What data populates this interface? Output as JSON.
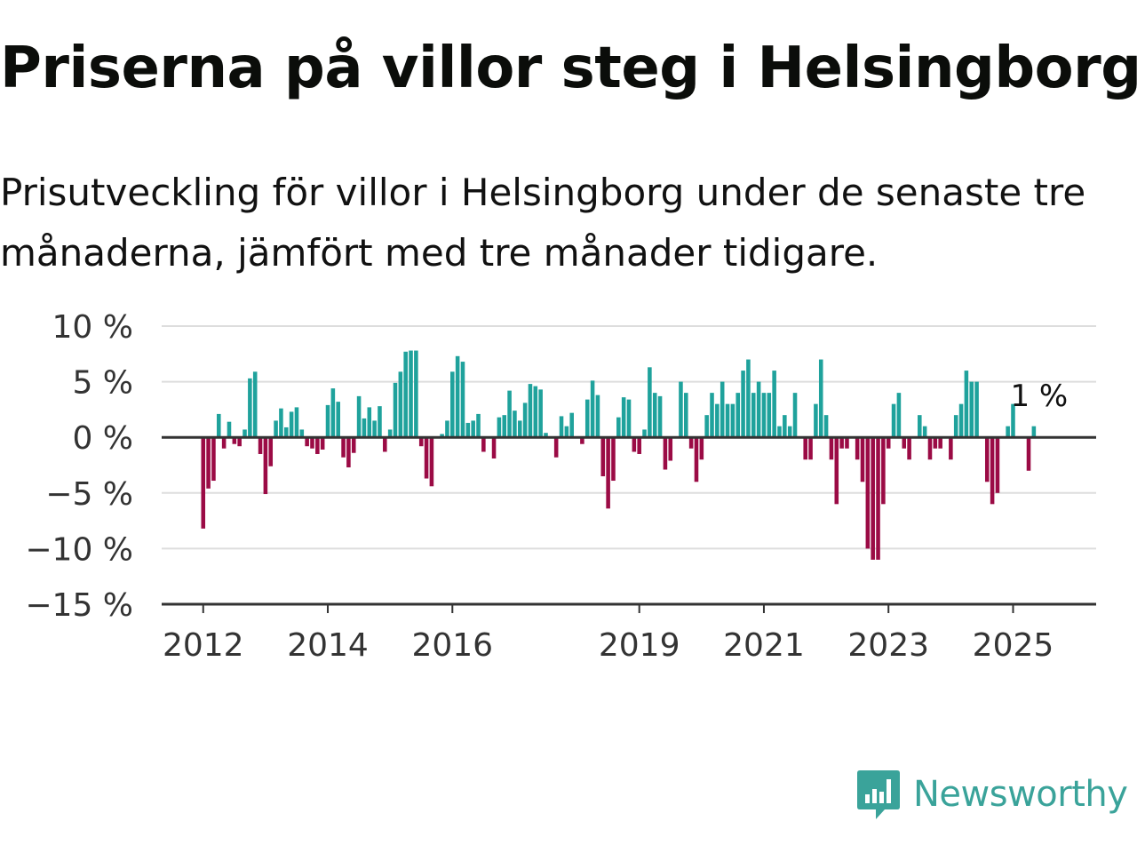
{
  "header": {
    "title": "Priserna på villor steg i Helsingborg",
    "subtitle": "Prisutveckling för villor i Helsingborg under de senaste tre månaderna, jämfört med tre månader tidigare."
  },
  "brand": {
    "name": "Newsworthy",
    "icon": "newsworthy-logo-icon"
  },
  "colors": {
    "positive": "#1fa29c",
    "negative": "#9b0b45",
    "grid": "#dddddd",
    "axis": "#333333",
    "brand": "#3aa39a"
  },
  "chart_data": {
    "type": "bar",
    "ylim": [
      -15,
      10
    ],
    "yticks": [
      10,
      5,
      0,
      -5,
      -10,
      -15
    ],
    "ytick_labels": [
      "10 %",
      "5 %",
      "0 %",
      "−5 %",
      "−10 %",
      "−15 %"
    ],
    "xlim": [
      "2011-05",
      "2026-05"
    ],
    "xticks": [
      "2012-01",
      "2014-01",
      "2016-01",
      "2019-01",
      "2021-01",
      "2023-01",
      "2025-01"
    ],
    "xtick_labels": [
      "2012",
      "2014",
      "2016",
      "2019",
      "2021",
      "2023",
      "2025"
    ],
    "grid": true,
    "annotation": {
      "x": "2025-05",
      "text": "1 %"
    },
    "x": [
      "2012-01",
      "2012-02",
      "2012-03",
      "2012-04",
      "2012-05",
      "2012-06",
      "2012-07",
      "2012-08",
      "2012-09",
      "2012-10",
      "2012-11",
      "2012-12",
      "2013-01",
      "2013-02",
      "2013-03",
      "2013-04",
      "2013-05",
      "2013-06",
      "2013-07",
      "2013-08",
      "2013-09",
      "2013-10",
      "2013-11",
      "2013-12",
      "2014-01",
      "2014-02",
      "2014-03",
      "2014-04",
      "2014-05",
      "2014-06",
      "2014-07",
      "2014-08",
      "2014-09",
      "2014-10",
      "2014-11",
      "2014-12",
      "2015-01",
      "2015-02",
      "2015-03",
      "2015-04",
      "2015-05",
      "2015-06",
      "2015-07",
      "2015-08",
      "2015-09",
      "2015-10",
      "2015-11",
      "2015-12",
      "2016-01",
      "2016-02",
      "2016-03",
      "2016-04",
      "2016-05",
      "2016-06",
      "2016-07",
      "2016-08",
      "2016-09",
      "2016-10",
      "2016-11",
      "2016-12",
      "2017-01",
      "2017-02",
      "2017-03",
      "2017-04",
      "2017-05",
      "2017-06",
      "2017-07",
      "2017-08",
      "2017-09",
      "2017-10",
      "2017-11",
      "2017-12",
      "2018-01",
      "2018-02",
      "2018-03",
      "2018-04",
      "2018-05",
      "2018-06",
      "2018-07",
      "2018-08",
      "2018-09",
      "2018-10",
      "2018-11",
      "2018-12",
      "2019-01",
      "2019-02",
      "2019-03",
      "2019-04",
      "2019-05",
      "2019-06",
      "2019-07",
      "2019-08",
      "2019-09",
      "2019-10",
      "2019-11",
      "2019-12",
      "2020-01",
      "2020-02",
      "2020-03",
      "2020-04",
      "2020-05",
      "2020-06",
      "2020-07",
      "2020-08",
      "2020-09",
      "2020-10",
      "2020-11",
      "2020-12",
      "2021-01",
      "2021-02",
      "2021-03",
      "2021-04",
      "2021-05",
      "2021-06",
      "2021-07",
      "2021-08",
      "2021-09",
      "2021-10",
      "2021-11",
      "2021-12",
      "2022-01",
      "2022-02",
      "2022-03",
      "2022-04",
      "2022-05",
      "2022-06",
      "2022-07",
      "2022-08",
      "2022-09",
      "2022-10",
      "2022-11",
      "2022-12",
      "2023-01",
      "2023-02",
      "2023-03",
      "2023-04",
      "2023-05",
      "2023-06",
      "2023-07",
      "2023-08",
      "2023-09",
      "2023-10",
      "2023-11",
      "2023-12",
      "2024-01",
      "2024-02",
      "2024-03",
      "2024-04",
      "2024-05",
      "2024-06",
      "2024-07",
      "2024-08",
      "2024-09",
      "2024-10",
      "2024-11",
      "2024-12",
      "2025-01",
      "2025-02",
      "2025-03",
      "2025-04",
      "2025-05"
    ],
    "values": [
      -8.2,
      -4.6,
      -3.9,
      2.1,
      -1.0,
      1.4,
      -0.6,
      -0.8,
      0.7,
      5.3,
      5.9,
      -1.5,
      -5.1,
      -2.6,
      1.5,
      2.6,
      0.9,
      2.3,
      2.7,
      0.7,
      -0.8,
      -1.0,
      -1.5,
      -1.1,
      2.9,
      4.4,
      3.2,
      -1.8,
      -2.7,
      -1.4,
      3.7,
      1.7,
      2.7,
      1.5,
      2.8,
      -1.3,
      0.7,
      4.9,
      5.9,
      7.7,
      7.8,
      7.8,
      -0.8,
      -3.7,
      -4.4,
      0.0,
      0.3,
      1.5,
      5.9,
      7.3,
      6.8,
      1.3,
      1.5,
      2.1,
      -1.3,
      0.0,
      -1.9,
      1.8,
      2.0,
      4.2,
      2.4,
      1.5,
      3.1,
      4.8,
      4.6,
      4.3,
      0.4,
      0.0,
      -1.8,
      1.9,
      1.0,
      2.2,
      0.0,
      -0.6,
      3.4,
      5.1,
      3.8,
      -3.5,
      -6.4,
      -3.9,
      1.8,
      3.6,
      3.4,
      -1.3,
      -1.5,
      0.7,
      6.3,
      4.0,
      3.7,
      -2.9,
      -2.1,
      0.0,
      5.0,
      4.0,
      -1.0,
      -4.0,
      -2.0,
      2.0,
      4.0,
      3.0,
      5.0,
      3.0,
      3.0,
      4.0,
      6.0,
      7.0,
      4.0,
      5.0,
      4.0,
      4.0,
      6.0,
      1.0,
      2.0,
      1.0,
      4.0,
      0.0,
      -2.0,
      -2.0,
      3.0,
      7.0,
      2.0,
      -2.0,
      -6.0,
      -1.0,
      -1.0,
      0.0,
      -2.0,
      -4.0,
      -10.0,
      -11.0,
      -11.0,
      -6.0,
      -1.0,
      3.0,
      4.0,
      -1.0,
      -2.0,
      0.0,
      2.0,
      1.0,
      -2.0,
      -1.0,
      -1.0,
      0.0,
      -2.0,
      2.0,
      3.0,
      6.0,
      5.0,
      5.0,
      0.0,
      -4.0,
      -6.0,
      -5.0,
      0.0,
      1.0,
      3.0,
      0.0,
      0.0,
      -3.0,
      1.0
    ]
  }
}
